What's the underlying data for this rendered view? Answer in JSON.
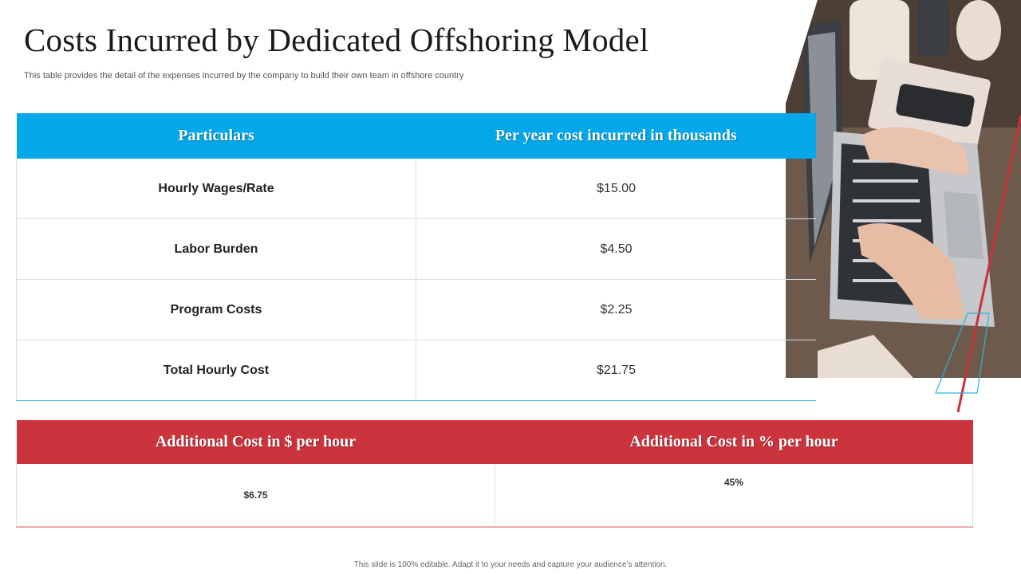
{
  "title": "Costs Incurred by Dedicated Offshoring Model",
  "subtitle": "This table provides the detail of the expenses incurred by the company to build their own team in offshore country",
  "cost_table": {
    "headers": [
      "Particulars",
      "Per year  cost incurred in thousands"
    ],
    "rows": [
      {
        "label": "Hourly Wages/Rate",
        "value": "$15.00"
      },
      {
        "label": "Labor Burden",
        "value": "$4.50"
      },
      {
        "label": "Program Costs",
        "value": "$2.25"
      },
      {
        "label": "Total Hourly Cost",
        "value": "$21.75"
      }
    ]
  },
  "additional_table": {
    "headers": [
      "Additional Cost in $ per hour",
      "Additional Cost in % per hour"
    ],
    "values": [
      "$6.75",
      "45%"
    ]
  },
  "footer": "This slide is 100% editable. Adapt it to your needs and capture your audience's attention.",
  "colors": {
    "header_blue": "#04a7e9",
    "header_red": "#cc343d",
    "accent_red_line": "#c8323b",
    "accent_cyan_line": "#2bb3dd"
  }
}
